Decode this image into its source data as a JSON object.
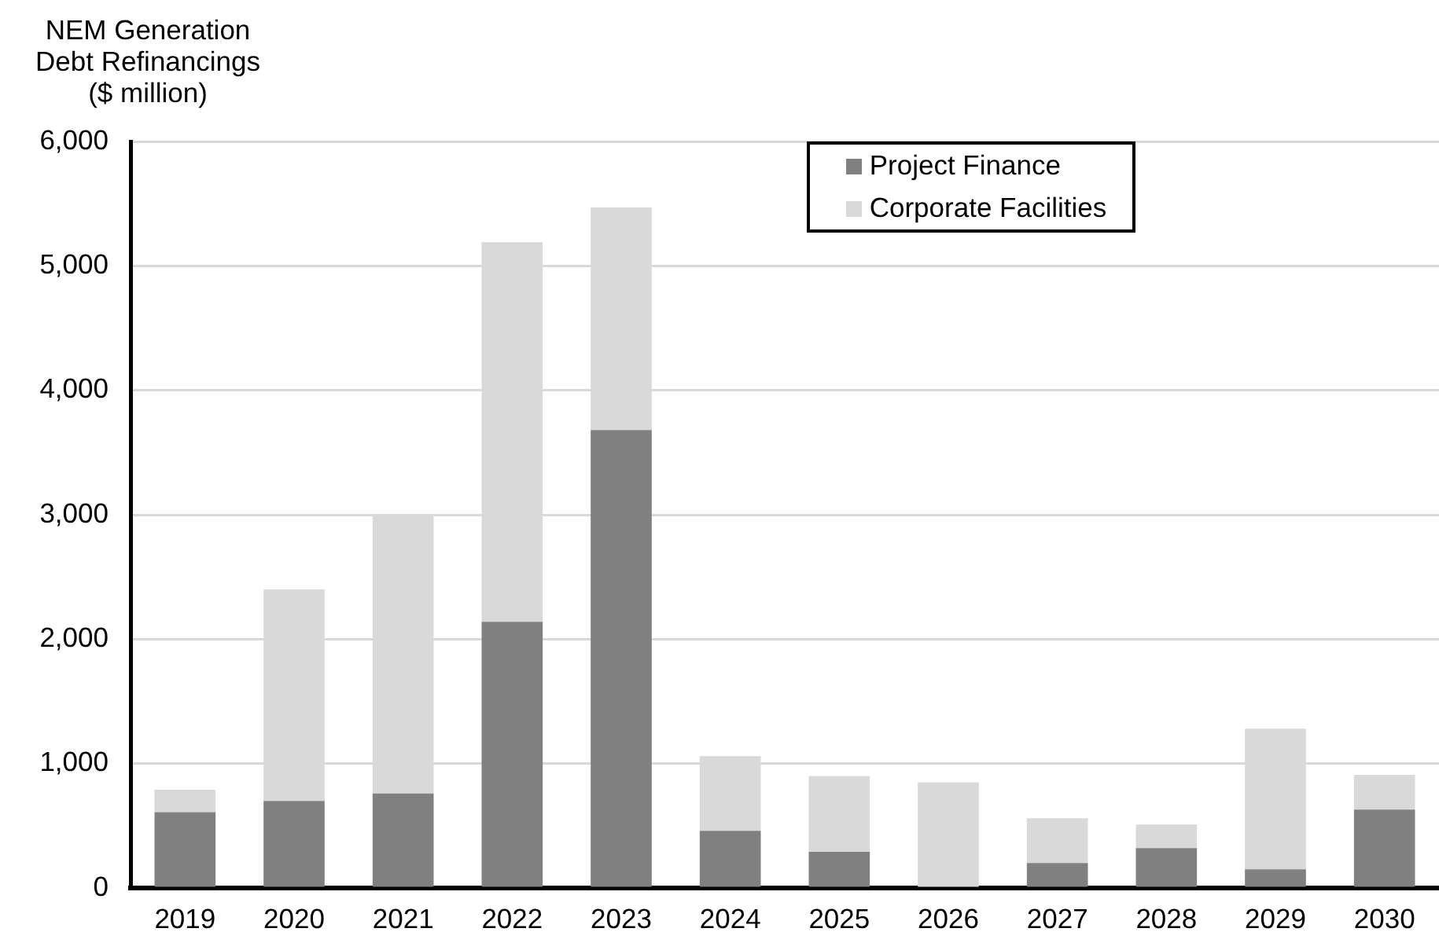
{
  "chart_data": {
    "type": "bar",
    "stacked": true,
    "ylabel": "NEM Generation Debt Refinancings ($ million)",
    "categories": [
      "2019",
      "2020",
      "2021",
      "2022",
      "2023",
      "2024",
      "2025",
      "2026",
      "2027",
      "2028",
      "2029",
      "2030"
    ],
    "series": [
      {
        "name": "Project Finance",
        "color": "#808080",
        "values": [
          610,
          700,
          760,
          2140,
          3680,
          460,
          290,
          0,
          200,
          320,
          150,
          630
        ]
      },
      {
        "name": "Corporate Facilities",
        "color": "#d9d9d9",
        "values": [
          180,
          1700,
          2240,
          3050,
          1790,
          600,
          610,
          850,
          360,
          190,
          1130,
          280
        ]
      }
    ],
    "ylim": [
      0,
      6000
    ],
    "yticks": [
      {
        "value": 0,
        "label": "0"
      },
      {
        "value": 1000,
        "label": "1,000"
      },
      {
        "value": 2000,
        "label": "2,000"
      },
      {
        "value": 3000,
        "label": "3,000"
      },
      {
        "value": 4000,
        "label": "4,000"
      },
      {
        "value": 5000,
        "label": "5,000"
      },
      {
        "value": 6000,
        "label": "6,000"
      }
    ],
    "grid": "y",
    "legend": "top"
  }
}
